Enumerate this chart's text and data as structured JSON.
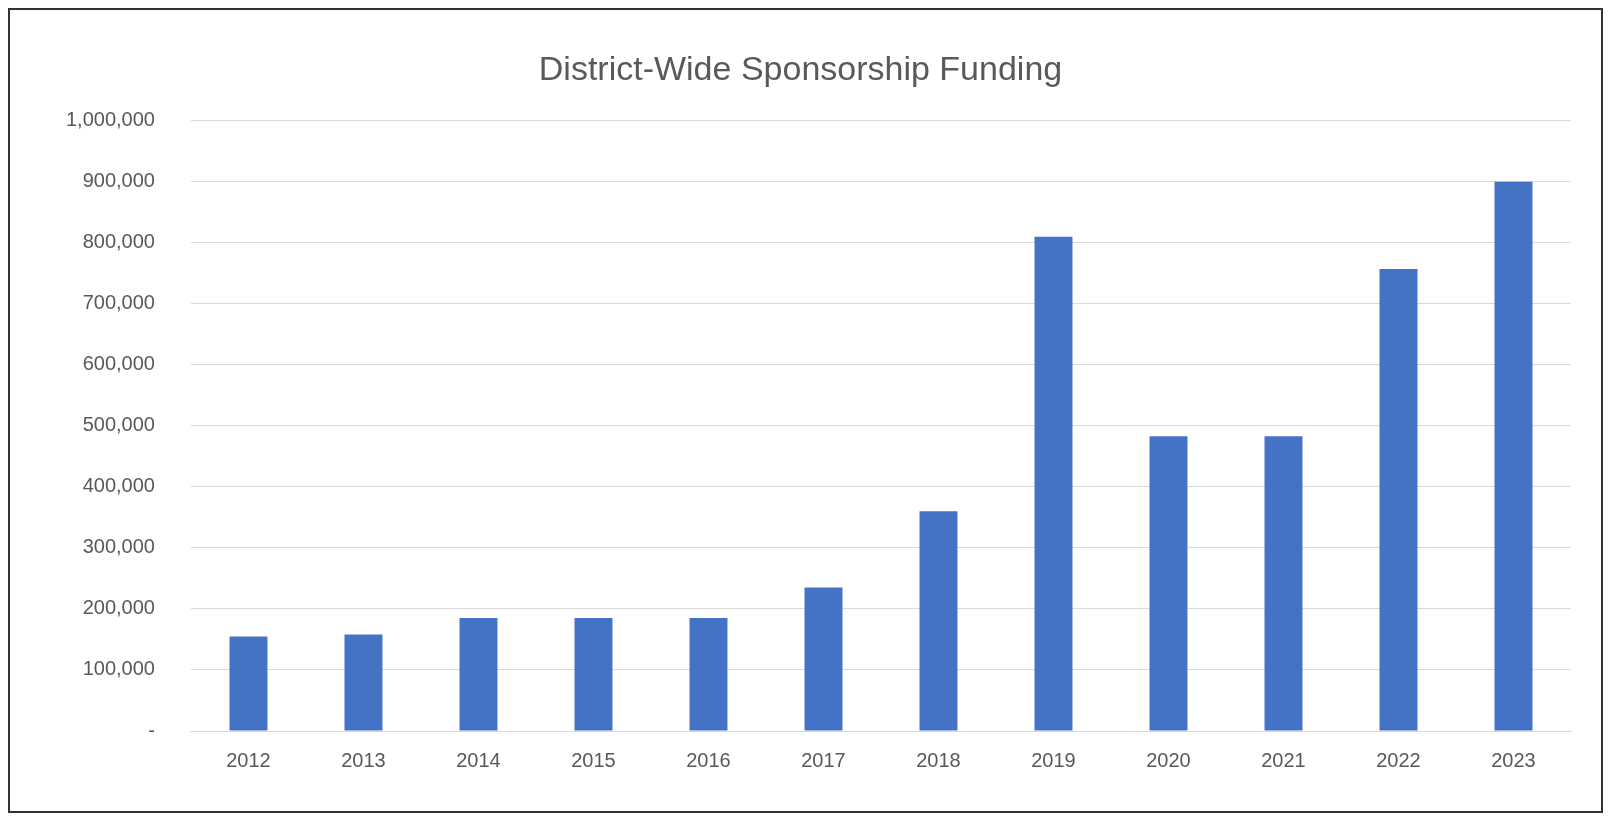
{
  "chart_data": {
    "type": "bar",
    "title": "District-Wide Sponsorship Funding",
    "categories": [
      "2012",
      "2013",
      "2014",
      "2015",
      "2016",
      "2017",
      "2018",
      "2019",
      "2020",
      "2021",
      "2022",
      "2023"
    ],
    "values": [
      155000,
      158000,
      185000,
      185000,
      185000,
      235000,
      360000,
      810000,
      483000,
      483000,
      757000,
      900000
    ],
    "color": "#4472c4",
    "ylim": [
      0,
      1000000
    ],
    "yticks": [
      {
        "value": 0,
        "label": "-"
      },
      {
        "value": 100000,
        "label": "100,000"
      },
      {
        "value": 200000,
        "label": "200,000"
      },
      {
        "value": 300000,
        "label": "300,000"
      },
      {
        "value": 400000,
        "label": "400,000"
      },
      {
        "value": 500000,
        "label": "500,000"
      },
      {
        "value": 600000,
        "label": "600,000"
      },
      {
        "value": 700000,
        "label": "700,000"
      },
      {
        "value": 800000,
        "label": "800,000"
      },
      {
        "value": 900000,
        "label": "900,000"
      },
      {
        "value": 1000000,
        "label": "1,000,000"
      }
    ],
    "grid": "y",
    "legend": false
  }
}
